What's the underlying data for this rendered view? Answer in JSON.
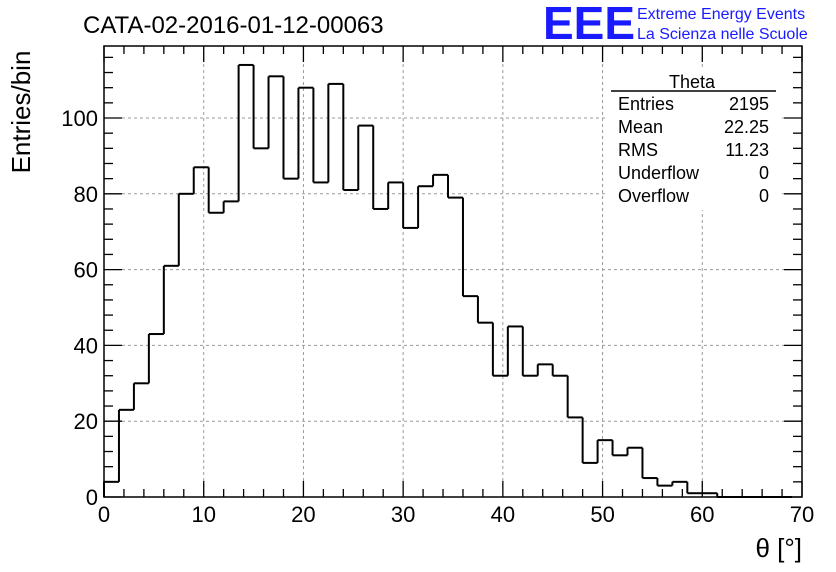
{
  "page": {
    "title": "CATA-02-2016-01-12-00063",
    "brand": {
      "logo_text": "EEE",
      "line1": "Extreme Energy Events",
      "line2": "La Scienza nelle Scuole",
      "color": "#1a1aff"
    }
  },
  "stats_box": {
    "title": "Theta",
    "rows": [
      {
        "label": "Entries",
        "value": "2195"
      },
      {
        "label": "Mean",
        "value": "22.25"
      },
      {
        "label": "RMS",
        "value": "11.23"
      },
      {
        "label": "Underflow",
        "value": "0"
      },
      {
        "label": "Overflow",
        "value": "0"
      }
    ]
  },
  "chart_data": {
    "type": "bar",
    "style": "histogram-step",
    "title": "CATA-02-2016-01-12-00063",
    "xlabel": "θ [°]",
    "ylabel": "Entries/bin",
    "xlim": [
      0,
      70
    ],
    "ylim": [
      0,
      119
    ],
    "bin_width": 1.5,
    "x_ticks": [
      0,
      10,
      20,
      30,
      40,
      50,
      60,
      70
    ],
    "y_ticks": [
      0,
      20,
      40,
      60,
      80,
      100
    ],
    "grid": true,
    "line_color": "#000000",
    "bin_edges": [
      0,
      1.5,
      3,
      4.5,
      6,
      7.5,
      9,
      10.5,
      12,
      13.5,
      15,
      16.5,
      18,
      19.5,
      21,
      22.5,
      24,
      25.5,
      27,
      28.5,
      30,
      31.5,
      33,
      34.5,
      36,
      37.5,
      39,
      40.5,
      42,
      43.5,
      45,
      46.5,
      48,
      49.5,
      51,
      52.5,
      54,
      55.5,
      57,
      58.5,
      60,
      61.5,
      63,
      64.5,
      66,
      67.5,
      69
    ],
    "values": [
      4,
      23,
      30,
      43,
      61,
      80,
      87,
      75,
      78,
      114,
      92,
      111,
      84,
      108,
      83,
      109,
      81,
      98,
      76,
      83,
      71,
      82,
      85,
      79,
      53,
      46,
      32,
      45,
      32,
      35,
      32,
      21,
      9,
      15,
      11,
      13,
      5,
      3,
      4,
      1,
      1,
      0,
      0,
      0,
      0,
      0
    ]
  }
}
